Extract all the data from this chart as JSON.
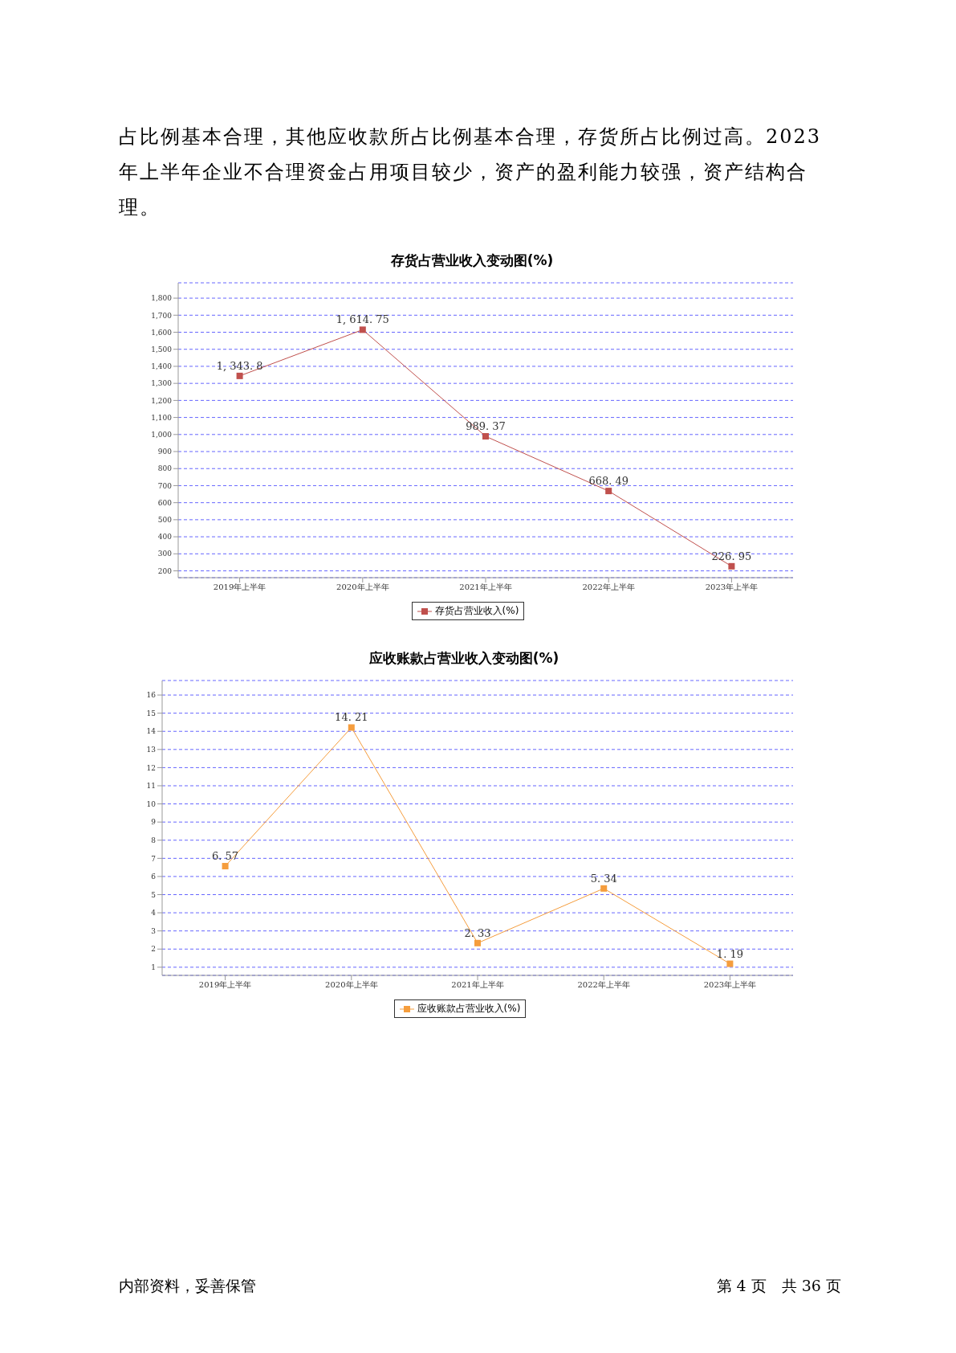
{
  "chart_data": [
    {
      "type": "line",
      "title": "存货占营业收入变动图(%)",
      "annotations": [
        "占比例基本合理，其他应收款所占比例基本合理，存货所占比例过高。2023年上半年企业不合理资金占用项目较少，资产的盈利能力较强，资产结构合理。"
      ],
      "categories": [
        "2019年上半年",
        "2020年上半年",
        "2021年上半年",
        "2022年上半年",
        "2023年上半年"
      ],
      "series": [
        {
          "name": "存货占营业收入(%)",
          "color": "#c0504d",
          "values": [
            1343.8,
            1614.75,
            989.37,
            668.49,
            226.95
          ]
        }
      ],
      "ylim": [
        160,
        1890
      ],
      "yticks": [
        {
          "value": 200,
          "label": "200"
        },
        {
          "value": 300,
          "label": "300"
        },
        {
          "value": 400,
          "label": "400"
        },
        {
          "value": 500,
          "label": "500"
        },
        {
          "value": 600,
          "label": "600"
        },
        {
          "value": 700,
          "label": "700"
        },
        {
          "value": 800,
          "label": "800"
        },
        {
          "value": 900,
          "label": "900"
        },
        {
          "value": 1000,
          "label": "1,000"
        },
        {
          "value": 1100,
          "label": "1,100"
        },
        {
          "value": 1200,
          "label": "1,200"
        },
        {
          "value": 1300,
          "label": "1,300"
        },
        {
          "value": 1400,
          "label": "1,400"
        },
        {
          "value": 1500,
          "label": "1,500"
        },
        {
          "value": 1600,
          "label": "1,600"
        },
        {
          "value": 1700,
          "label": "1,700"
        },
        {
          "value": 1800,
          "label": "1,800"
        }
      ],
      "grid": "y",
      "legend": "bottom",
      "marker": "square",
      "line_style": "solid",
      "value_labels": [
        "1, 343. 8",
        "1, 614. 75",
        "989. 37",
        "668. 49",
        "226. 95"
      ]
    },
    {
      "type": "line",
      "title": "应收账款占营业收入变动图(%)",
      "annotations": [
        "内部资料，妥善保管",
        "第 4 页　共 36 页"
      ],
      "categories": [
        "2019年上半年",
        "2020年上半年",
        "2021年上半年",
        "2022年上半年",
        "2023年上半年"
      ],
      "series": [
        {
          "name": "应收账款占营业收入(%)",
          "color": "#f59d3d",
          "values": [
            6.57,
            14.21,
            2.33,
            5.34,
            1.19
          ]
        }
      ],
      "ylim": [
        0.55,
        16.8
      ],
      "yticks": [
        1,
        2,
        3,
        4,
        5,
        6,
        7,
        8,
        9,
        10,
        11,
        12,
        13,
        14,
        15,
        16
      ],
      "grid": "y",
      "legend": "bottom",
      "marker": "square",
      "line_style": "solid",
      "value_labels": [
        "6. 57",
        "14. 21",
        "2. 33",
        "5. 34",
        "1. 19"
      ]
    }
  ]
}
